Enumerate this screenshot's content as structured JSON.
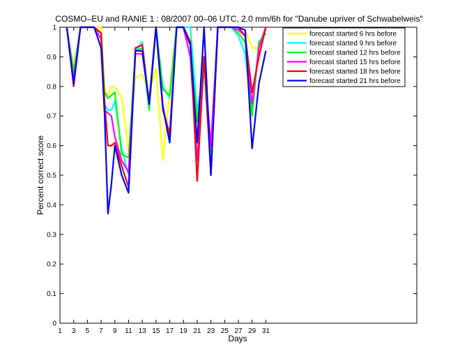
{
  "chart_data": {
    "type": "line",
    "title": "COSMO–EU and RANIE 1 : 08/2007 00–06 UTC, 2.0 mm/6h for \"Danube upriver of Schwabelweis\"",
    "xlabel": "Days",
    "ylabel": "Percent correct score",
    "xlim": [
      1,
      53
    ],
    "ylim": [
      0,
      1
    ],
    "xticks": [
      1,
      3,
      5,
      7,
      9,
      11,
      13,
      15,
      17,
      19,
      21,
      23,
      25,
      27,
      29,
      31
    ],
    "yticks": [
      0,
      0.1,
      0.2,
      0.3,
      0.4,
      0.5,
      0.6,
      0.7,
      0.8,
      0.9,
      1
    ],
    "ytick_labels": [
      "0",
      "0.1",
      "0.2",
      "0.3",
      "0.4",
      "0.5",
      "0.6",
      "0.7",
      "0.8",
      "0.9",
      "1"
    ],
    "grid": false,
    "legend_position": "top-right",
    "series": [
      {
        "name": "forecast started 6 hrs before",
        "color": "#ffff00",
        "x": [
          2,
          3,
          4,
          5,
          6,
          7,
          7.5,
          8,
          8.5,
          9,
          10,
          11,
          12,
          13,
          14,
          15,
          16,
          17,
          18,
          19,
          20,
          21,
          22,
          23,
          24,
          25,
          26,
          27,
          28,
          29,
          30,
          31
        ],
        "y": [
          1,
          0.86,
          1,
          1,
          1,
          1,
          0.79,
          0.77,
          0.8,
          0.8,
          0.76,
          0.58,
          0.83,
          0.84,
          0.78,
          0.86,
          0.55,
          0.78,
          1,
          1,
          0.96,
          0.71,
          0.86,
          0.57,
          1,
          1,
          1,
          1,
          0.99,
          0.93,
          0.93,
          1
        ]
      },
      {
        "name": "forecast started 9 hrs before",
        "color": "#00ffff",
        "x": [
          2,
          3,
          4,
          5,
          6,
          7,
          7.5,
          8,
          8.5,
          9,
          10,
          11,
          12,
          13,
          14,
          15,
          16,
          17,
          18,
          19,
          20,
          21,
          22,
          23,
          24,
          25,
          26,
          27,
          28,
          29,
          30,
          31
        ],
        "y": [
          1,
          0.84,
          1,
          1,
          1,
          0.98,
          0.74,
          0.72,
          0.72,
          0.75,
          0.59,
          0.5,
          0.92,
          0.95,
          0.74,
          1,
          0.8,
          0.76,
          1,
          1,
          1,
          0.72,
          0.85,
          0.54,
          1,
          1,
          1,
          0.97,
          0.91,
          0.71,
          0.94,
          1
        ]
      },
      {
        "name": "forecast started 12 hrs before",
        "color": "#00ff00",
        "x": [
          2,
          3,
          4,
          5,
          6,
          7,
          7.5,
          8,
          8.5,
          9,
          10,
          11,
          12,
          13,
          14,
          15,
          16,
          17,
          18,
          19,
          20,
          21,
          22,
          23,
          24,
          25,
          26,
          27,
          28,
          29,
          30,
          31
        ],
        "y": [
          1,
          0.85,
          1,
          1,
          1,
          0.98,
          0.78,
          0.76,
          0.77,
          0.78,
          0.57,
          0.56,
          0.92,
          0.93,
          0.72,
          1,
          0.79,
          0.77,
          1,
          1,
          0.95,
          0.68,
          0.9,
          0.58,
          1,
          1,
          1,
          0.98,
          0.95,
          0.7,
          0.95,
          0.98
        ]
      },
      {
        "name": "forecast started 15 hrs before",
        "color": "#ff00ff",
        "x": [
          2,
          3,
          4,
          5,
          6,
          7,
          7.5,
          8,
          8.5,
          9,
          10,
          11,
          12,
          13,
          14,
          15,
          16,
          17,
          18,
          19,
          20,
          21,
          22,
          23,
          24,
          25,
          26,
          27,
          28,
          29,
          30,
          31
        ],
        "y": [
          1,
          0.82,
          1,
          1,
          1,
          0.96,
          0.72,
          0.71,
          0.7,
          0.63,
          0.55,
          0.51,
          0.91,
          0.91,
          0.75,
          1,
          0.73,
          0.63,
          1,
          1,
          0.9,
          0.55,
          0.89,
          0.6,
          1,
          1,
          1,
          0.99,
          0.97,
          0.74,
          0.93,
          1
        ]
      },
      {
        "name": "forecast started 18 hrs before",
        "color": "#ff0000",
        "x": [
          2,
          3,
          4,
          5,
          6,
          7,
          7.5,
          8,
          8.5,
          9,
          10,
          11,
          12,
          13,
          14,
          15,
          16,
          17,
          18,
          19,
          20,
          21,
          22,
          23,
          24,
          25,
          26,
          27,
          28,
          29,
          30,
          31
        ],
        "y": [
          1,
          0.8,
          1,
          1,
          1,
          0.98,
          0.75,
          0.6,
          0.6,
          0.61,
          0.53,
          0.46,
          0.93,
          0.94,
          0.74,
          1,
          0.72,
          0.64,
          1,
          1,
          0.95,
          0.48,
          0.9,
          0.5,
          1,
          1,
          1,
          1,
          0.97,
          0.78,
          0.9,
          1
        ]
      },
      {
        "name": "forecast started 21 hrs before",
        "color": "#0000ff",
        "x": [
          2,
          3,
          4,
          5,
          6,
          7,
          7.5,
          8,
          8.5,
          9,
          10,
          11,
          12,
          13,
          14,
          15,
          16,
          17,
          18,
          19,
          20,
          21,
          22,
          23,
          24,
          25,
          26,
          27,
          28,
          29,
          30,
          31
        ],
        "y": [
          1,
          0.81,
          1,
          1,
          1,
          0.93,
          0.71,
          0.37,
          0.47,
          0.6,
          0.5,
          0.44,
          0.92,
          0.92,
          0.74,
          1,
          0.73,
          0.61,
          1,
          1,
          0.94,
          0.61,
          1,
          0.5,
          1,
          1,
          1,
          1,
          0.99,
          0.59,
          0.81,
          0.92
        ]
      }
    ]
  }
}
